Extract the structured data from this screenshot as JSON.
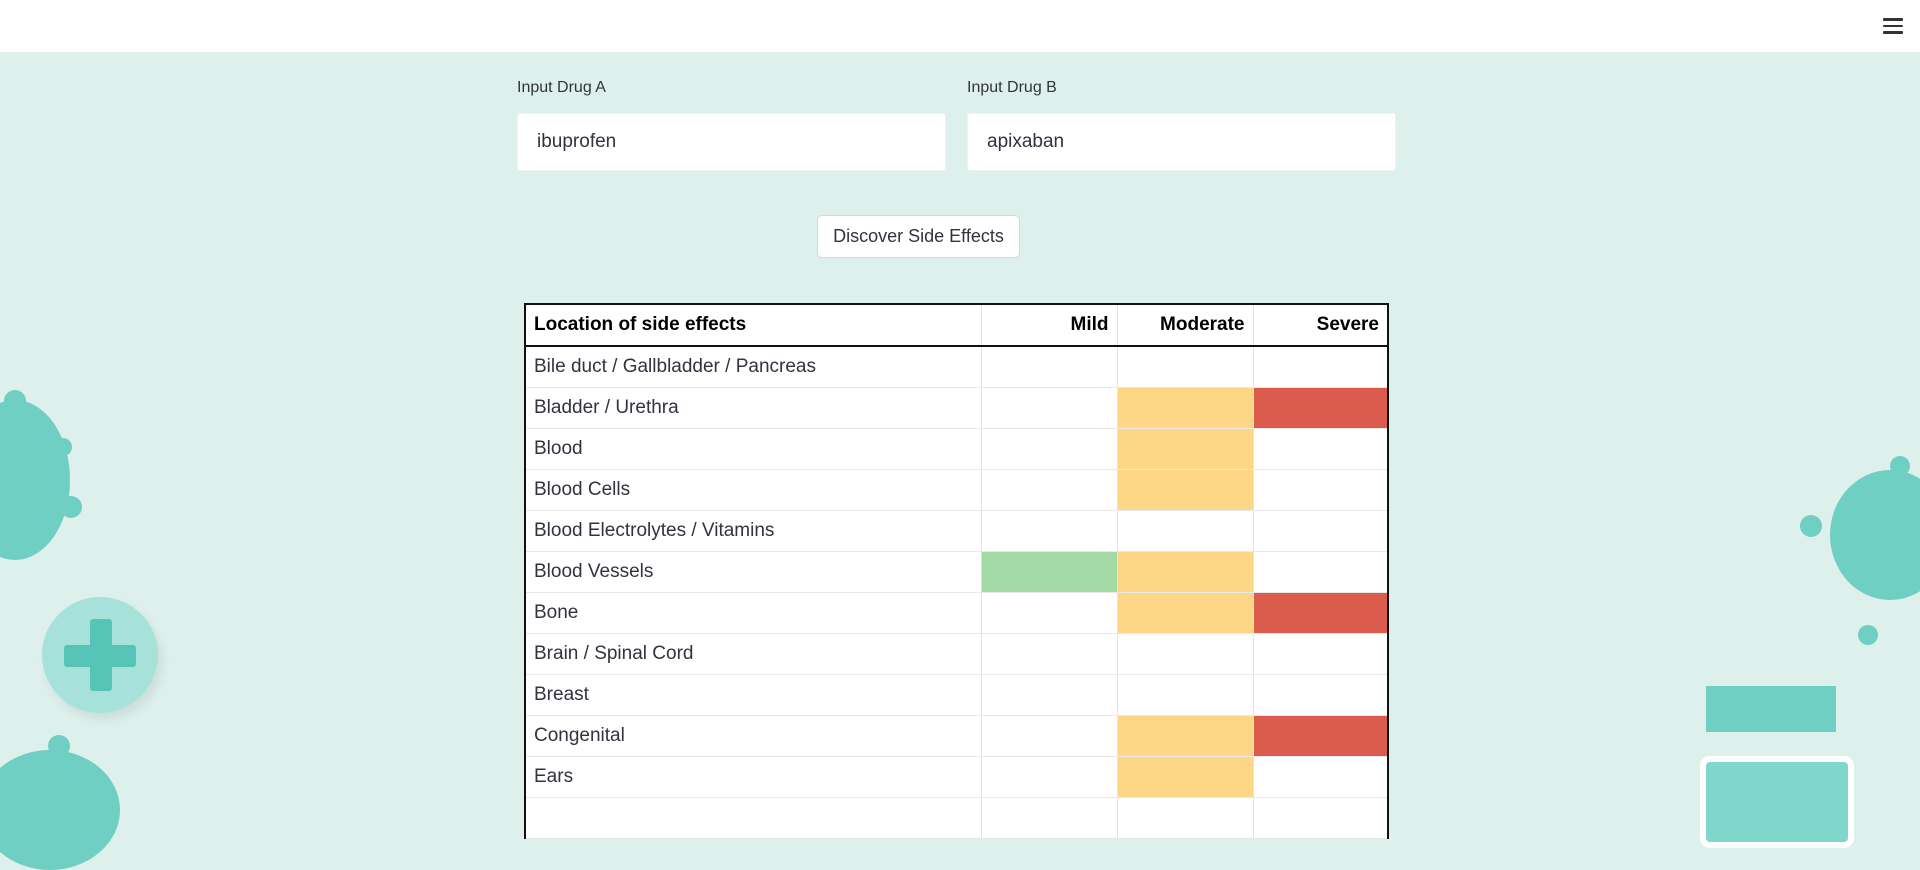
{
  "header": {
    "menu_icon": "hamburger-menu-icon"
  },
  "inputs": {
    "drug_a": {
      "label": "Input Drug A",
      "value": "ibuprofen"
    },
    "drug_b": {
      "label": "Input Drug B",
      "value": "apixaban"
    }
  },
  "discover_button": "Discover Side Effects",
  "table": {
    "headers": [
      "Location of side effects",
      "Mild",
      "Moderate",
      "Severe"
    ],
    "colors": {
      "mild": "#a3d9a4",
      "moderate": "#fdd686",
      "severe": "#db5b4c"
    },
    "rows": [
      {
        "location": "Bile duct / Gallbladder / Pancreas",
        "mild": false,
        "moderate": false,
        "severe": false
      },
      {
        "location": "Bladder / Urethra",
        "mild": false,
        "moderate": true,
        "severe": true
      },
      {
        "location": "Blood",
        "mild": false,
        "moderate": true,
        "severe": false
      },
      {
        "location": "Blood Cells",
        "mild": false,
        "moderate": true,
        "severe": false
      },
      {
        "location": "Blood Electrolytes / Vitamins",
        "mild": false,
        "moderate": false,
        "severe": false
      },
      {
        "location": "Blood Vessels",
        "mild": true,
        "moderate": true,
        "severe": false
      },
      {
        "location": "Bone",
        "mild": false,
        "moderate": true,
        "severe": true
      },
      {
        "location": "Brain / Spinal Cord",
        "mild": false,
        "moderate": false,
        "severe": false
      },
      {
        "location": "Breast",
        "mild": false,
        "moderate": false,
        "severe": false
      },
      {
        "location": "Congenital",
        "mild": false,
        "moderate": true,
        "severe": true
      },
      {
        "location": "Ears",
        "mild": false,
        "moderate": true,
        "severe": false
      },
      {
        "location": "",
        "mild": false,
        "moderate": false,
        "severe": false
      }
    ]
  }
}
